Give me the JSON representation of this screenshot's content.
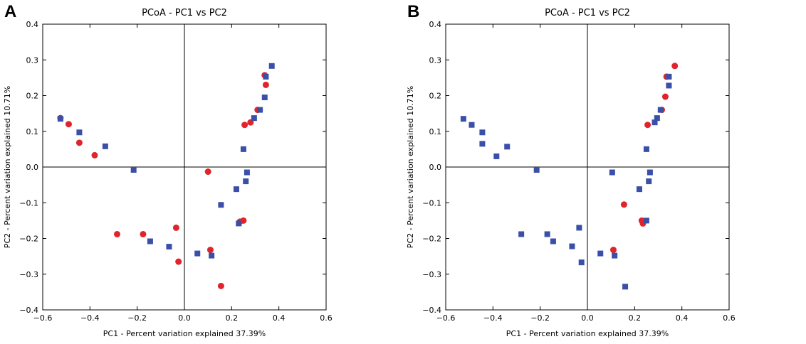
{
  "colors": {
    "group1": "#e0242c",
    "group2": "#3a4fa8",
    "axis": "#000000"
  },
  "chart_data": [
    {
      "panel_label": "A",
      "type": "scatter",
      "title": "PCoA - PC1 vs PC2",
      "xlabel": "PC1 - Percent variation explained 37.39%",
      "ylabel": "PC2 - Percent variation explained 10.71%",
      "xlim": [
        -0.6,
        0.6
      ],
      "ylim": [
        -0.4,
        0.4
      ],
      "xticks": [
        -0.6,
        -0.4,
        -0.2,
        0.0,
        0.2,
        0.4,
        0.6
      ],
      "yticks": [
        -0.4,
        -0.3,
        -0.2,
        -0.1,
        0.0,
        0.1,
        0.2,
        0.3,
        0.4
      ],
      "xtick_labels": [
        "−0.6",
        "−0.4",
        "−0.2",
        "0.0",
        "0.2",
        "0.4",
        "0.6"
      ],
      "ytick_labels": [
        "−0.4",
        "−0.3",
        "−0.2",
        "−0.1",
        "0.0",
        "0.1",
        "0.2",
        "0.3",
        "0.4"
      ],
      "series": [
        {
          "name": "red circles",
          "marker": "circle",
          "color": "#e0242c",
          "points": [
            [
              -0.525,
              0.137
            ],
            [
              -0.49,
              0.12
            ],
            [
              -0.445,
              0.068
            ],
            [
              -0.38,
              0.033
            ],
            [
              0.255,
              0.118
            ],
            [
              0.28,
              0.125
            ],
            [
              0.31,
              0.16
            ],
            [
              0.34,
              0.257
            ],
            [
              0.345,
              0.23
            ],
            [
              0.1,
              -0.013
            ],
            [
              -0.285,
              -0.188
            ],
            [
              -0.175,
              -0.188
            ],
            [
              -0.035,
              -0.17
            ],
            [
              -0.025,
              -0.265
            ],
            [
              0.11,
              -0.232
            ],
            [
              0.235,
              -0.153
            ],
            [
              0.25,
              -0.15
            ],
            [
              0.155,
              -0.333
            ]
          ]
        },
        {
          "name": "blue squares",
          "marker": "square",
          "color": "#3a4fa8",
          "points": [
            [
              -0.525,
              0.135
            ],
            [
              -0.445,
              0.097
            ],
            [
              -0.335,
              0.058
            ],
            [
              -0.215,
              -0.008
            ],
            [
              0.37,
              0.283
            ],
            [
              0.345,
              0.253
            ],
            [
              0.34,
              0.195
            ],
            [
              0.32,
              0.16
            ],
            [
              0.295,
              0.137
            ],
            [
              0.25,
              0.05
            ],
            [
              0.265,
              -0.015
            ],
            [
              0.26,
              -0.04
            ],
            [
              0.22,
              -0.062
            ],
            [
              0.155,
              -0.106
            ],
            [
              0.23,
              -0.158
            ],
            [
              -0.145,
              -0.208
            ],
            [
              -0.065,
              -0.223
            ],
            [
              0.055,
              -0.242
            ],
            [
              0.115,
              -0.248
            ]
          ]
        }
      ]
    },
    {
      "panel_label": "B",
      "type": "scatter",
      "title": "PCoA - PC1 vs PC2",
      "xlabel": "PC1 - Percent variation explained 37.39%",
      "ylabel": "PC2 - Percent variation explained 10.71%",
      "xlim": [
        -0.6,
        0.6
      ],
      "ylim": [
        -0.4,
        0.4
      ],
      "xticks": [
        -0.6,
        -0.4,
        -0.2,
        0.0,
        0.2,
        0.4,
        0.6
      ],
      "yticks": [
        -0.4,
        -0.3,
        -0.2,
        -0.1,
        0.0,
        0.1,
        0.2,
        0.3,
        0.4
      ],
      "xtick_labels": [
        "−0.6",
        "−0.4",
        "−0.2",
        "0.0",
        "0.2",
        "0.4",
        "0.6"
      ],
      "ytick_labels": [
        "−0.4",
        "−0.3",
        "−0.2",
        "−0.1",
        "0.0",
        "0.1",
        "0.2",
        "0.3",
        "0.4"
      ],
      "series": [
        {
          "name": "red circles",
          "marker": "circle",
          "color": "#e0242c",
          "points": [
            [
              0.37,
              0.283
            ],
            [
              0.335,
              0.253
            ],
            [
              0.33,
              0.197
            ],
            [
              0.315,
              0.16
            ],
            [
              0.255,
              0.118
            ],
            [
              0.155,
              -0.105
            ],
            [
              0.23,
              -0.15
            ],
            [
              0.235,
              -0.158
            ],
            [
              0.11,
              -0.232
            ]
          ]
        },
        {
          "name": "blue squares",
          "marker": "square",
          "color": "#3a4fa8",
          "points": [
            [
              -0.525,
              0.135
            ],
            [
              -0.49,
              0.118
            ],
            [
              -0.445,
              0.097
            ],
            [
              -0.445,
              0.065
            ],
            [
              -0.385,
              0.03
            ],
            [
              -0.34,
              0.057
            ],
            [
              -0.215,
              -0.008
            ],
            [
              -0.28,
              -0.188
            ],
            [
              -0.17,
              -0.188
            ],
            [
              -0.145,
              -0.208
            ],
            [
              -0.035,
              -0.17
            ],
            [
              -0.065,
              -0.222
            ],
            [
              -0.025,
              -0.267
            ],
            [
              0.055,
              -0.242
            ],
            [
              0.105,
              -0.015
            ],
            [
              0.115,
              -0.248
            ],
            [
              0.16,
              -0.335
            ],
            [
              0.25,
              -0.15
            ],
            [
              0.22,
              -0.062
            ],
            [
              0.26,
              -0.04
            ],
            [
              0.265,
              -0.015
            ],
            [
              0.25,
              0.05
            ],
            [
              0.285,
              0.125
            ],
            [
              0.295,
              0.137
            ],
            [
              0.31,
              0.16
            ],
            [
              0.345,
              0.253
            ],
            [
              0.345,
              0.228
            ]
          ]
        }
      ]
    }
  ]
}
